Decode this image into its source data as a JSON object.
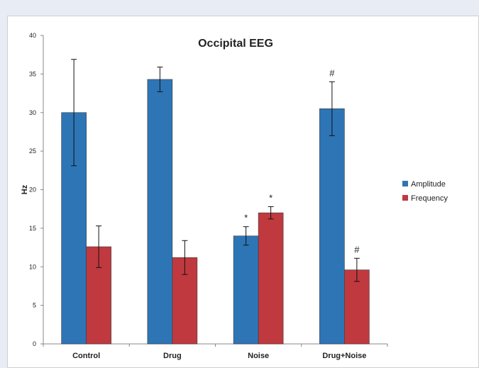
{
  "chart_data": {
    "type": "bar",
    "title": "Occipital EEG",
    "xlabel": "",
    "ylabel": "Hz",
    "ylim": [
      0,
      40
    ],
    "yticks": [
      0,
      5,
      10,
      15,
      20,
      25,
      30,
      35,
      40
    ],
    "categories": [
      "Control",
      "Drug",
      "Noise",
      "Drug+Noise"
    ],
    "series": [
      {
        "name": "Amplitude",
        "color": "#2e75b6",
        "values": [
          30.0,
          34.3,
          14.0,
          30.5
        ],
        "errors": [
          6.9,
          1.6,
          1.2,
          3.5
        ],
        "annotations": [
          "",
          "",
          "*",
          "#"
        ]
      },
      {
        "name": "Frequency",
        "color": "#c0393f",
        "values": [
          12.6,
          11.2,
          17.0,
          9.6
        ],
        "errors": [
          2.7,
          2.2,
          0.8,
          1.5
        ],
        "annotations": [
          "",
          "",
          "*",
          "#"
        ]
      }
    ],
    "legend_position": "right",
    "grid": false
  }
}
